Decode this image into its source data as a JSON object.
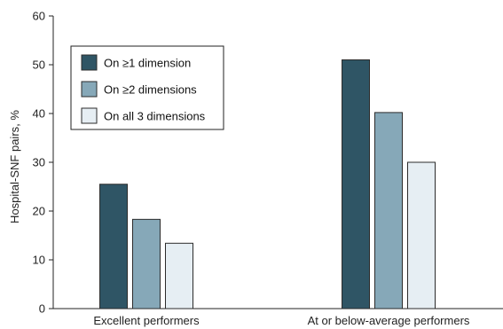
{
  "chart_data": {
    "type": "bar",
    "categories": [
      "Excellent performers",
      "At or below-average performers"
    ],
    "series": [
      {
        "name": "On ≥1 dimension",
        "color": "#2f5565",
        "values": [
          25.5,
          51.0
        ]
      },
      {
        "name": "On ≥2 dimensions",
        "color": "#86a8b8",
        "values": [
          18.3,
          40.2
        ]
      },
      {
        "name": "On all 3 dimensions",
        "color": "#e6eef3",
        "values": [
          13.4,
          30.0
        ]
      }
    ],
    "xlabel": "",
    "ylabel": "Hospital-SNF pairs, %",
    "ylim": [
      0,
      60
    ],
    "yticks": [
      0,
      10,
      20,
      30,
      40,
      50,
      60
    ],
    "grid": false,
    "legend_position": "top-left"
  }
}
